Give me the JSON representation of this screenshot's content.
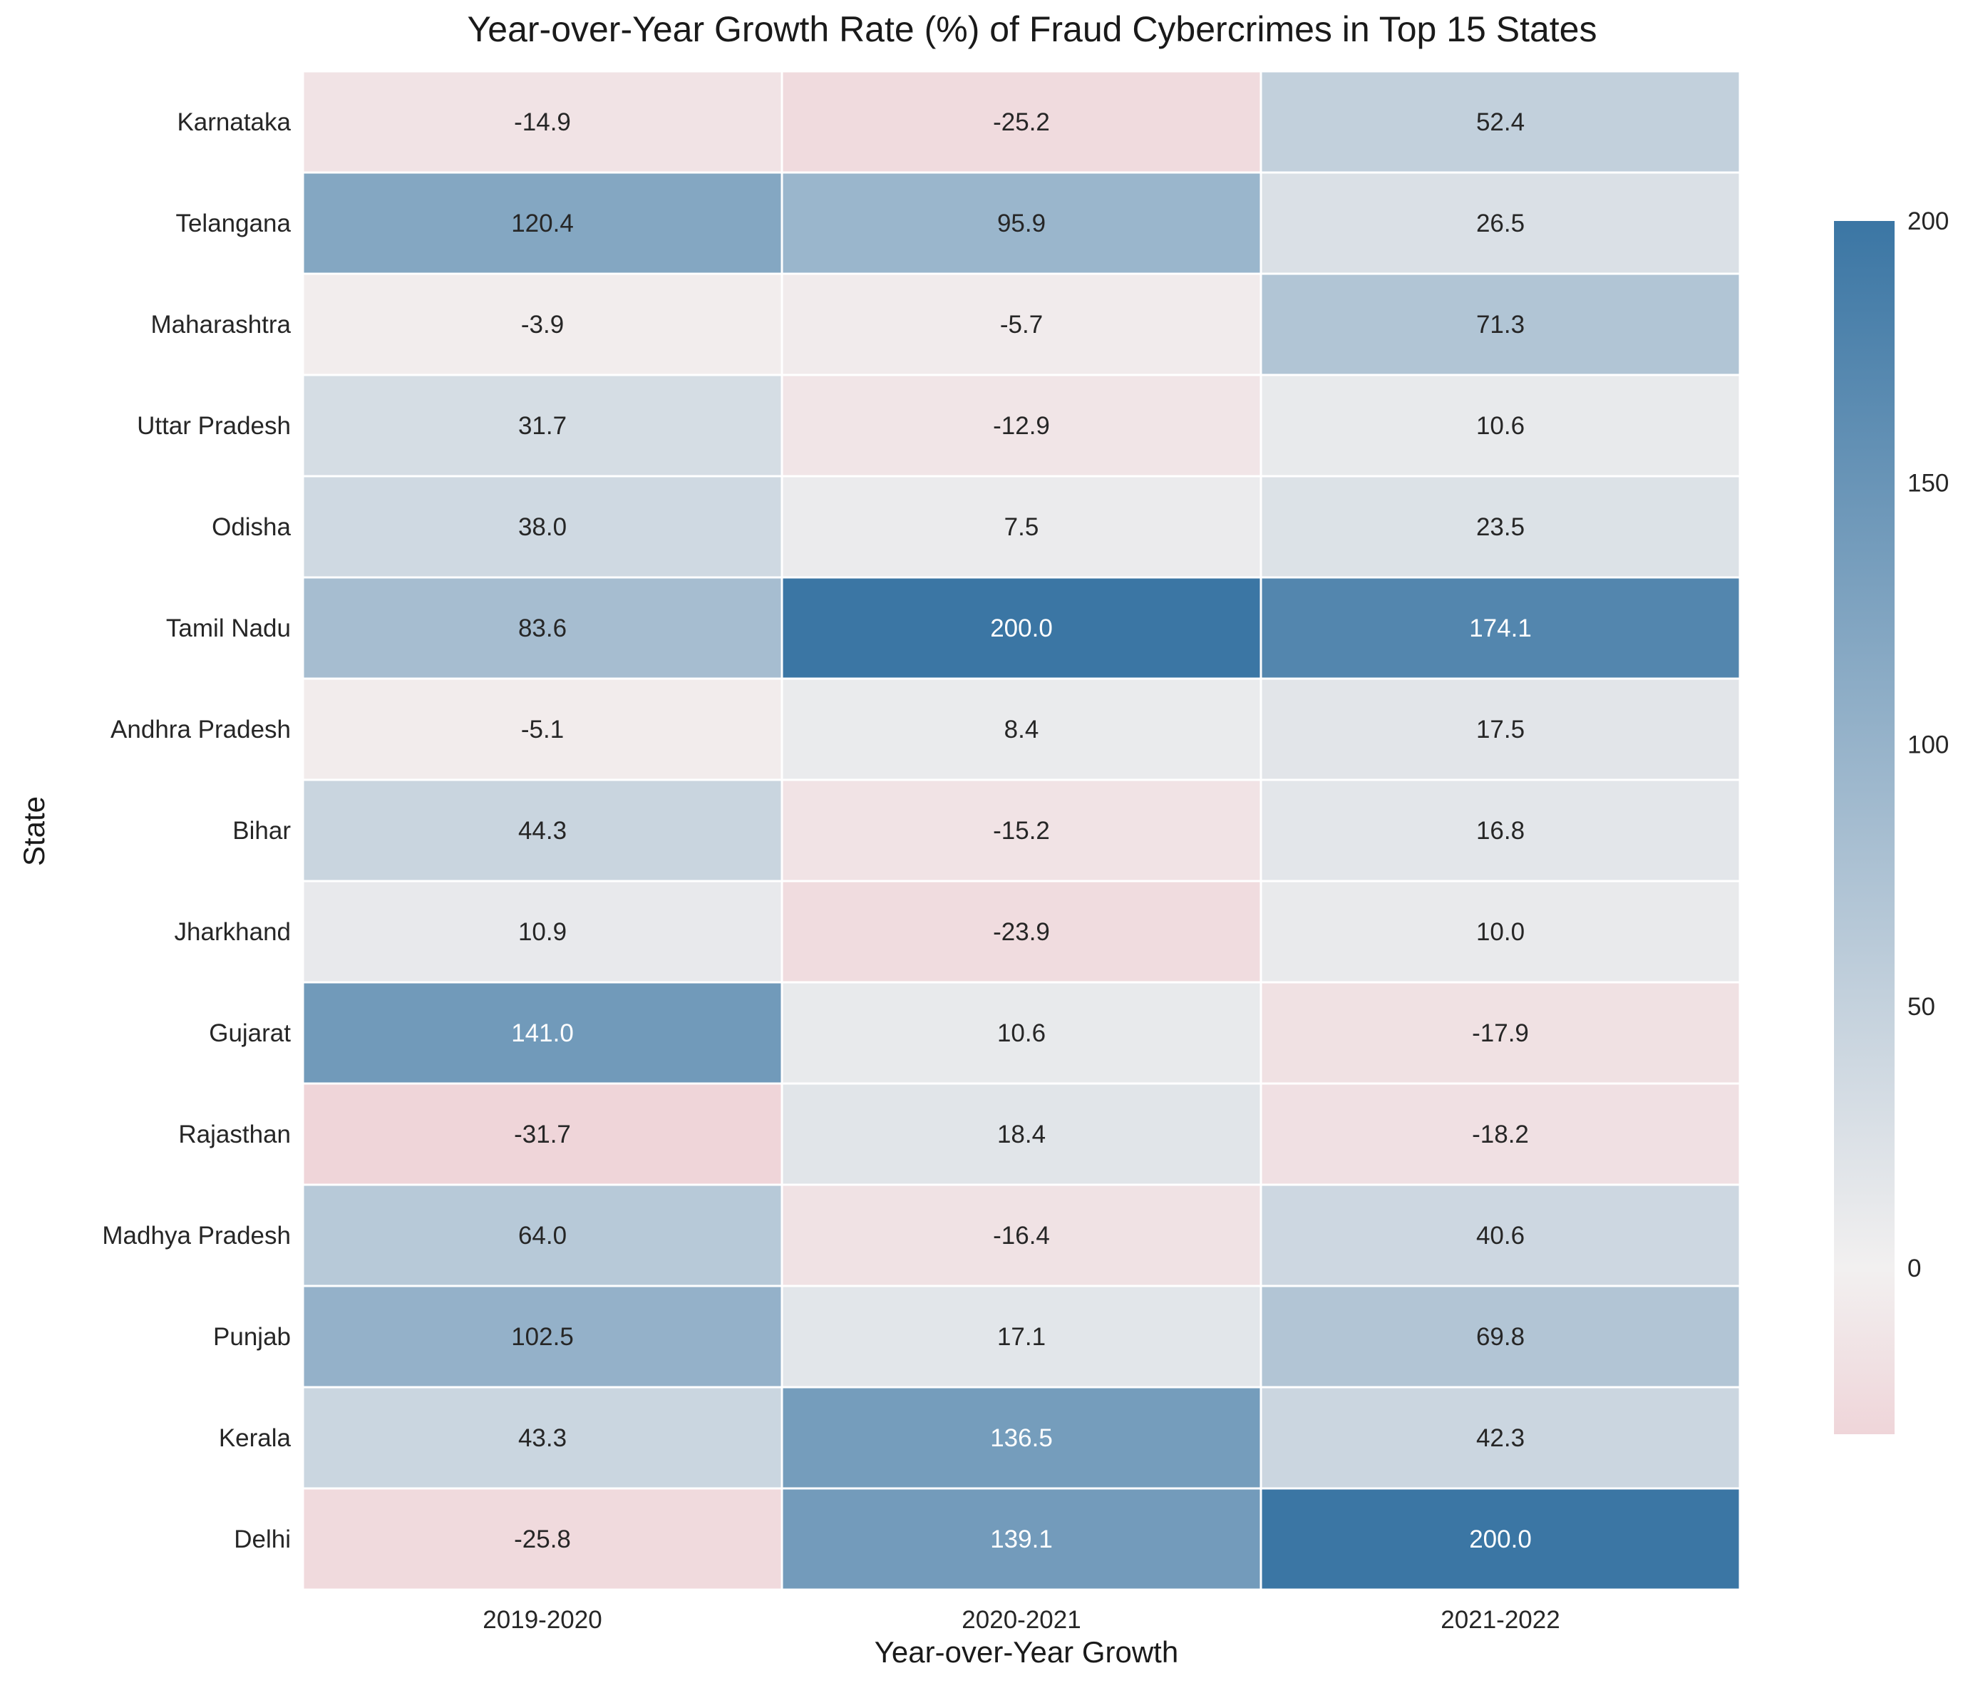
{
  "chart_data": {
    "type": "heatmap",
    "title": "Year-over-Year Growth Rate (%) of Fraud Cybercrimes in Top 15 States",
    "xlabel": "Year-over-Year Growth",
    "ylabel": "State",
    "columns": [
      "2019-2020",
      "2020-2021",
      "2021-2022"
    ],
    "rows": [
      "Karnataka",
      "Telangana",
      "Maharashtra",
      "Uttar Pradesh",
      "Odisha",
      "Tamil Nadu",
      "Andhra Pradesh",
      "Bihar",
      "Jharkhand",
      "Gujarat",
      "Rajasthan",
      "Madhya Pradesh",
      "Punjab",
      "Kerala",
      "Delhi"
    ],
    "values": [
      [
        -14.9,
        -25.2,
        52.4
      ],
      [
        120.4,
        95.9,
        26.5
      ],
      [
        -3.9,
        -5.7,
        71.3
      ],
      [
        31.7,
        -12.9,
        10.6
      ],
      [
        38.0,
        7.5,
        23.5
      ],
      [
        83.6,
        200.0,
        174.1
      ],
      [
        -5.1,
        8.4,
        17.5
      ],
      [
        44.3,
        -15.2,
        16.8
      ],
      [
        10.9,
        -23.9,
        10.0
      ],
      [
        141.0,
        10.6,
        -17.9
      ],
      [
        -31.7,
        18.4,
        -18.2
      ],
      [
        64.0,
        -16.4,
        40.6
      ],
      [
        102.5,
        17.1,
        69.8
      ],
      [
        43.3,
        136.5,
        42.3
      ],
      [
        -25.8,
        139.1,
        200.0
      ]
    ],
    "value_format": "0.0",
    "colorbar": {
      "vmin": -31.7,
      "vmax": 200,
      "center": 0,
      "ticks": [
        0,
        50,
        100,
        150,
        200
      ],
      "tick_labels": [
        "0",
        "50",
        "100",
        "150",
        "200"
      ],
      "colors": {
        "negative": "#efd5d9",
        "zero": "#f2f0f0",
        "positive": "#3b76a4"
      }
    },
    "grid": false
  }
}
